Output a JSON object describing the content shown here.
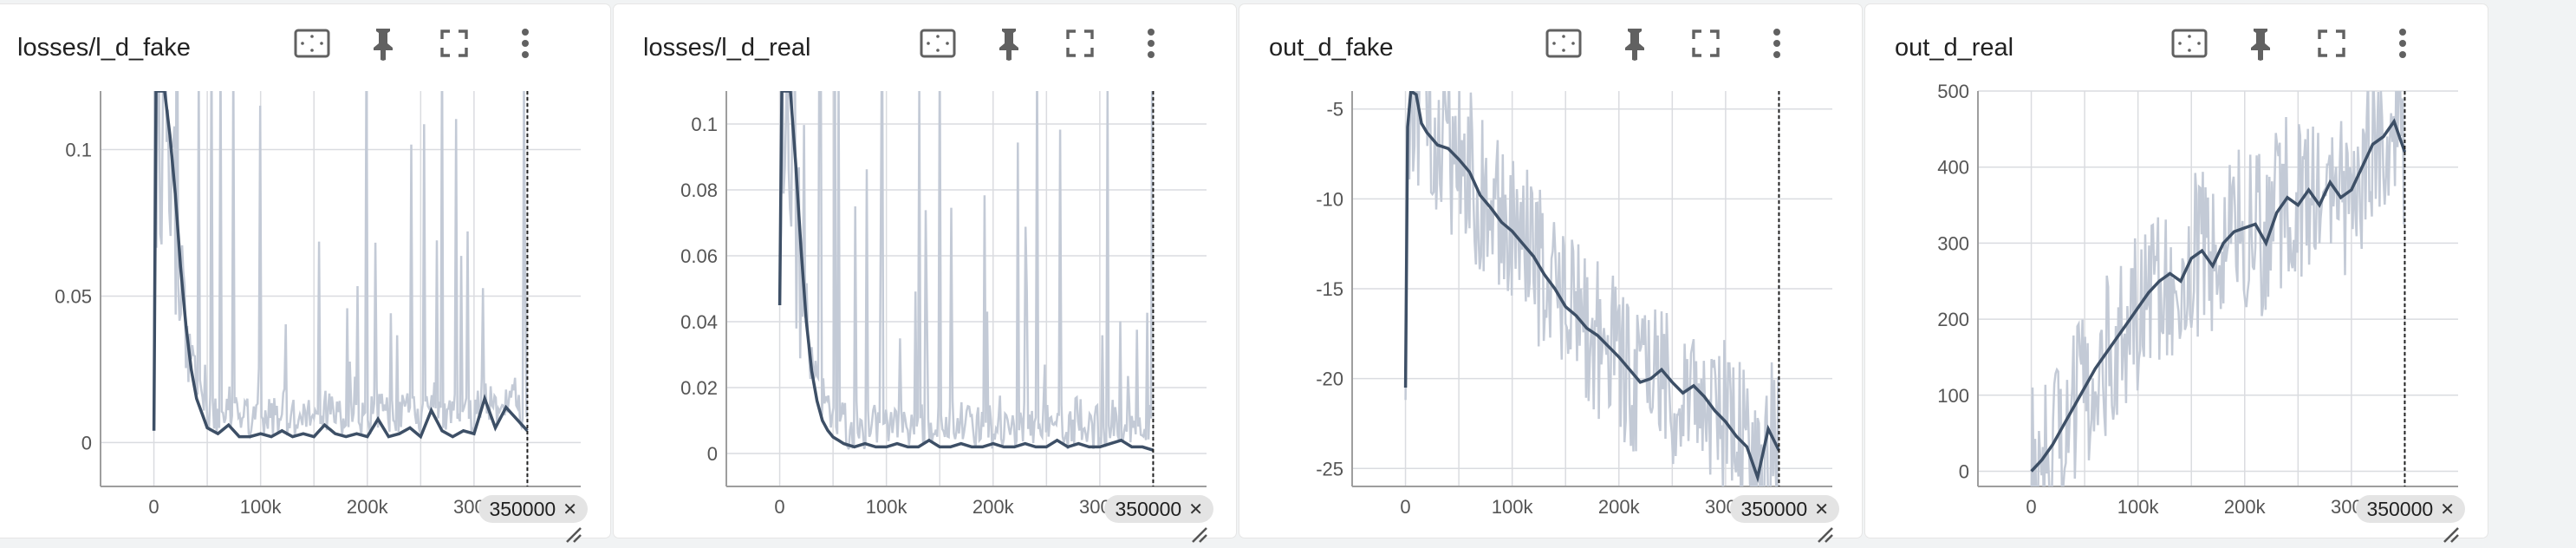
{
  "cards": [
    {
      "title": "losses/l_d_fake",
      "tooltip_step": "350000",
      "tick_x": [
        "0",
        "100k",
        "200k",
        "300k"
      ],
      "tick_y": [
        "0",
        "0.05",
        "0.1"
      ]
    },
    {
      "title": "losses/l_d_real",
      "tooltip_step": "350000",
      "tick_x": [
        "0",
        "100k",
        "200k",
        "300k"
      ],
      "tick_y": [
        "0",
        "0.02",
        "0.04",
        "0.06",
        "0.08",
        "0.1"
      ]
    },
    {
      "title": "out_d_fake",
      "tooltip_step": "350000",
      "tick_x": [
        "0",
        "100k",
        "200k",
        "300k"
      ],
      "tick_y": [
        "-5",
        "-10",
        "-15",
        "-20",
        "-25"
      ]
    },
    {
      "title": "out_d_real",
      "tooltip_step": "350000",
      "tick_x": [
        "0",
        "100k",
        "200k",
        "300k"
      ],
      "tick_y": [
        "0",
        "100",
        "200",
        "300",
        "400",
        "500"
      ]
    }
  ],
  "toolbar": {
    "icons": [
      "fit-domain-icon",
      "pin-icon",
      "fullscreen-icon",
      "more-vert-icon"
    ]
  },
  "colors": {
    "smoothed": "#3d4f66",
    "raw": "#c3cad6",
    "grid": "#dadce0",
    "axis": "#9e9e9e"
  },
  "chart_data": [
    {
      "type": "line",
      "title": "losses/l_d_fake",
      "xlim": [
        -50000,
        400000
      ],
      "ylim": [
        -0.015,
        0.12
      ],
      "x_ticks": [
        0,
        100000,
        200000,
        300000
      ],
      "y_ticks": [
        0,
        0.05,
        0.1
      ],
      "grid": true,
      "cursor_x": 350000,
      "series": [
        {
          "style": "smoothed",
          "x": [
            0,
            2000,
            5000,
            10000,
            15000,
            20000,
            25000,
            30000,
            35000,
            40000,
            45000,
            50000,
            55000,
            60000,
            70000,
            80000,
            90000,
            100000,
            110000,
            120000,
            130000,
            140000,
            150000,
            160000,
            170000,
            180000,
            190000,
            200000,
            210000,
            220000,
            230000,
            240000,
            250000,
            260000,
            270000,
            280000,
            290000,
            300000,
            310000,
            320000,
            330000,
            340000,
            350000
          ],
          "y": [
            0.004,
            0.12,
            0.12,
            0.12,
            0.105,
            0.085,
            0.06,
            0.04,
            0.025,
            0.015,
            0.01,
            0.005,
            0.004,
            0.003,
            0.006,
            0.002,
            0.002,
            0.003,
            0.002,
            0.004,
            0.002,
            0.003,
            0.002,
            0.006,
            0.003,
            0.002,
            0.003,
            0.002,
            0.008,
            0.002,
            0.003,
            0.005,
            0.002,
            0.011,
            0.004,
            0.002,
            0.004,
            0.003,
            0.015,
            0.005,
            0.012,
            0.008,
            0.004
          ]
        }
      ]
    },
    {
      "type": "line",
      "title": "losses/l_d_real",
      "xlim": [
        -50000,
        400000
      ],
      "ylim": [
        -0.01,
        0.11
      ],
      "x_ticks": [
        0,
        100000,
        200000,
        300000
      ],
      "y_ticks": [
        0,
        0.02,
        0.04,
        0.06,
        0.08,
        0.1
      ],
      "grid": true,
      "cursor_x": 350000,
      "series": [
        {
          "style": "smoothed",
          "x": [
            0,
            2000,
            5000,
            10000,
            15000,
            20000,
            25000,
            30000,
            35000,
            40000,
            45000,
            50000,
            55000,
            60000,
            70000,
            80000,
            90000,
            100000,
            110000,
            120000,
            130000,
            140000,
            150000,
            160000,
            170000,
            180000,
            190000,
            200000,
            210000,
            220000,
            230000,
            240000,
            250000,
            260000,
            270000,
            280000,
            290000,
            300000,
            310000,
            320000,
            330000,
            340000,
            350000
          ],
          "y": [
            0.045,
            0.11,
            0.11,
            0.11,
            0.088,
            0.062,
            0.04,
            0.025,
            0.016,
            0.01,
            0.007,
            0.005,
            0.004,
            0.003,
            0.002,
            0.003,
            0.002,
            0.002,
            0.003,
            0.002,
            0.002,
            0.004,
            0.002,
            0.002,
            0.003,
            0.002,
            0.002,
            0.003,
            0.002,
            0.002,
            0.003,
            0.002,
            0.002,
            0.004,
            0.002,
            0.003,
            0.002,
            0.002,
            0.003,
            0.004,
            0.002,
            0.002,
            0.001
          ]
        }
      ]
    },
    {
      "type": "line",
      "title": "out_d_fake",
      "xlim": [
        -50000,
        400000
      ],
      "ylim": [
        -26,
        -4
      ],
      "x_ticks": [
        0,
        100000,
        200000,
        300000
      ],
      "y_ticks": [
        -5,
        -10,
        -15,
        -20,
        -25
      ],
      "grid": true,
      "cursor_x": 350000,
      "series": [
        {
          "style": "smoothed",
          "x": [
            0,
            2000,
            5000,
            10000,
            15000,
            20000,
            30000,
            40000,
            50000,
            60000,
            70000,
            80000,
            90000,
            100000,
            110000,
            120000,
            130000,
            140000,
            150000,
            160000,
            170000,
            180000,
            190000,
            200000,
            210000,
            220000,
            230000,
            240000,
            250000,
            260000,
            270000,
            280000,
            290000,
            300000,
            310000,
            320000,
            330000,
            340000,
            350000
          ],
          "y": [
            -20.5,
            -6.0,
            -4.0,
            -4.2,
            -5.8,
            -6.3,
            -7.0,
            -7.2,
            -7.8,
            -8.5,
            -9.8,
            -10.5,
            -11.3,
            -11.8,
            -12.5,
            -13.2,
            -14.2,
            -15.0,
            -16.0,
            -16.5,
            -17.2,
            -17.6,
            -18.2,
            -18.8,
            -19.5,
            -20.2,
            -20.0,
            -19.5,
            -20.2,
            -20.8,
            -20.4,
            -21.0,
            -21.8,
            -22.4,
            -23.2,
            -23.8,
            -25.5,
            -22.8,
            -24.0
          ]
        }
      ]
    },
    {
      "type": "line",
      "title": "out_d_real",
      "xlim": [
        -50000,
        400000
      ],
      "ylim": [
        -20,
        500
      ],
      "x_ticks": [
        0,
        100000,
        200000,
        300000
      ],
      "y_ticks": [
        0,
        100,
        200,
        300,
        400,
        500
      ],
      "grid": true,
      "cursor_x": 350000,
      "series": [
        {
          "style": "smoothed",
          "x": [
            0,
            10000,
            20000,
            30000,
            40000,
            50000,
            60000,
            70000,
            80000,
            90000,
            100000,
            110000,
            120000,
            130000,
            140000,
            150000,
            160000,
            170000,
            180000,
            190000,
            200000,
            210000,
            220000,
            230000,
            240000,
            250000,
            260000,
            270000,
            280000,
            290000,
            300000,
            310000,
            320000,
            330000,
            340000,
            350000
          ],
          "y": [
            0,
            15,
            35,
            60,
            85,
            110,
            135,
            155,
            175,
            195,
            215,
            235,
            250,
            260,
            250,
            280,
            290,
            270,
            300,
            315,
            320,
            325,
            300,
            340,
            360,
            350,
            370,
            350,
            380,
            360,
            370,
            400,
            430,
            440,
            460,
            420
          ]
        }
      ]
    }
  ]
}
